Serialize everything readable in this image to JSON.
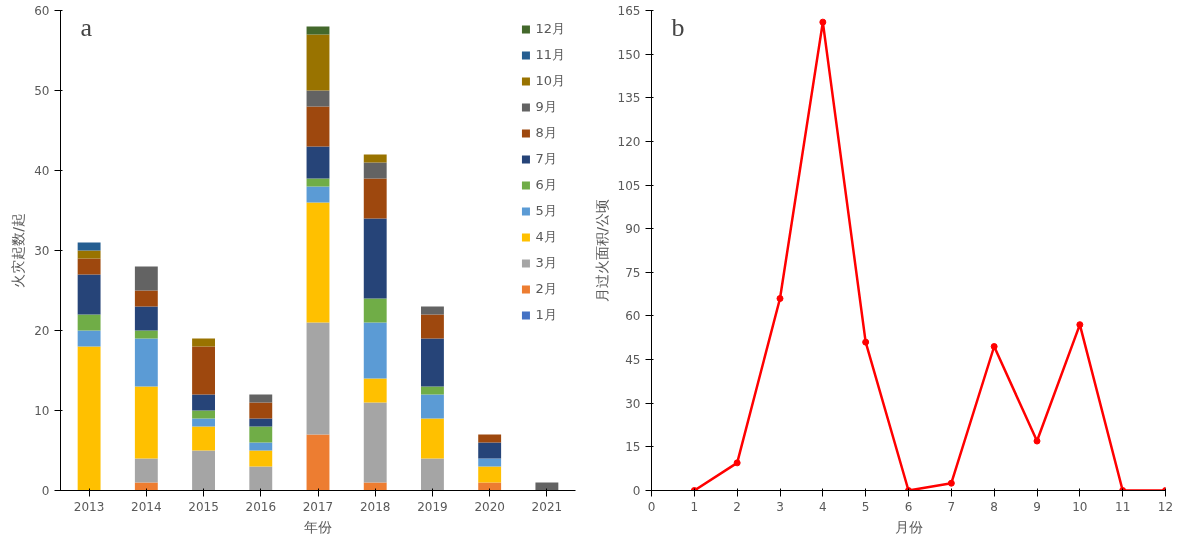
{
  "chart_data": [
    {
      "type": "bar",
      "title": "a",
      "xlabel": "年份",
      "ylabel": "火灾起数/起",
      "stacked": true,
      "legend": "top right",
      "grid": false,
      "categories": [
        "2013",
        "2014",
        "2015",
        "2016",
        "2017",
        "2018",
        "2019",
        "2020",
        "2021"
      ],
      "ylim": [
        0,
        60
      ],
      "yticks": [
        0,
        10,
        20,
        30,
        40,
        50,
        60
      ],
      "series": [
        {
          "name": "1月",
          "color": "#4472c4",
          "values": [
            0,
            0,
            0,
            0,
            0,
            0,
            0,
            0,
            0
          ]
        },
        {
          "name": "2月",
          "color": "#ed7d31",
          "values": [
            0,
            1,
            0,
            0,
            7,
            1,
            0,
            1,
            0
          ]
        },
        {
          "name": "3月",
          "color": "#a5a5a5",
          "values": [
            0,
            3,
            5,
            3,
            14,
            10,
            4,
            0,
            0
          ]
        },
        {
          "name": "4月",
          "color": "#ffc000",
          "values": [
            18,
            9,
            3,
            2,
            15,
            3,
            5,
            2,
            0
          ]
        },
        {
          "name": "5月",
          "color": "#5b9bd5",
          "values": [
            2,
            6,
            1,
            1,
            2,
            7,
            3,
            1,
            0
          ]
        },
        {
          "name": "6月",
          "color": "#70ad47",
          "values": [
            2,
            1,
            1,
            2,
            1,
            3,
            1,
            0,
            0
          ]
        },
        {
          "name": "7月",
          "color": "#264478",
          "values": [
            5,
            3,
            2,
            1,
            4,
            10,
            6,
            2,
            0
          ]
        },
        {
          "name": "8月",
          "color": "#9e480e",
          "values": [
            2,
            2,
            6,
            2,
            5,
            5,
            3,
            1,
            0
          ]
        },
        {
          "name": "9月",
          "color": "#636363",
          "values": [
            0,
            3,
            0,
            1,
            2,
            2,
            1,
            0,
            1
          ]
        },
        {
          "name": "10月",
          "color": "#997300",
          "values": [
            1,
            0,
            1,
            0,
            7,
            1,
            0,
            0,
            0
          ]
        },
        {
          "name": "11月",
          "color": "#255e91",
          "values": [
            1,
            0,
            0,
            0,
            0,
            0,
            0,
            0,
            0
          ]
        },
        {
          "name": "12月",
          "color": "#43682b",
          "values": [
            0,
            0,
            0,
            0,
            1,
            0,
            0,
            0,
            0
          ]
        }
      ]
    },
    {
      "type": "line",
      "title": "b",
      "xlabel": "月份",
      "ylabel": "月过火面积/公顷",
      "marker": "circle",
      "line_style": "solid",
      "grid": false,
      "legend": false,
      "x": [
        1,
        2,
        3,
        4,
        5,
        6,
        7,
        8,
        9,
        10,
        11,
        12
      ],
      "xlim": [
        0,
        12
      ],
      "xticks": [
        0,
        1,
        2,
        3,
        4,
        5,
        6,
        7,
        8,
        9,
        10,
        11,
        12
      ],
      "ylim": [
        0,
        165
      ],
      "yticks": [
        0,
        15,
        30,
        45,
        60,
        75,
        90,
        105,
        120,
        135,
        150,
        165
      ],
      "series": [
        {
          "color": "#ff0000",
          "values": [
            0,
            9.5,
            66,
            161,
            51,
            0,
            2.5,
            49.5,
            17,
            57,
            0,
            0
          ]
        }
      ]
    }
  ]
}
